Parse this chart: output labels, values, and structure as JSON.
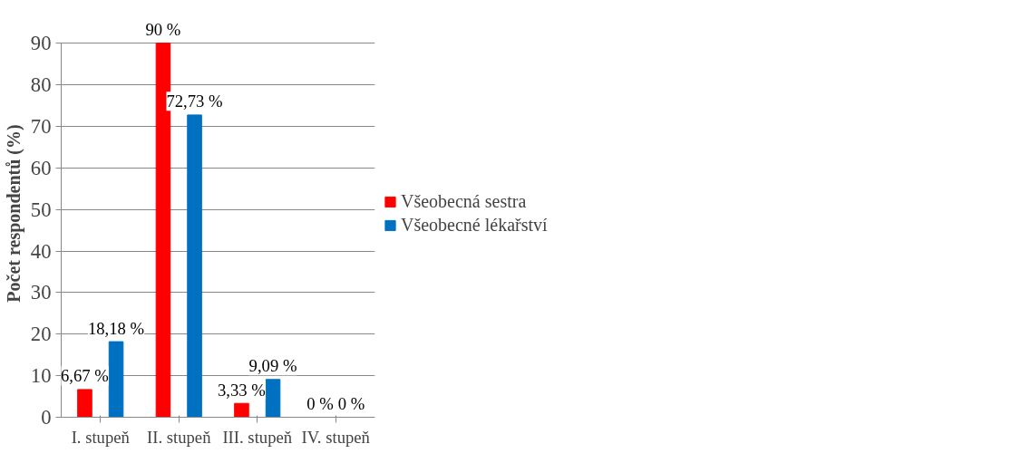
{
  "chart_data": {
    "type": "bar",
    "ylabel": "Počet respondentů (%)",
    "categories": [
      "I. stupeň",
      "II. stupeň",
      "III. stupeň",
      "IV. stupeň"
    ],
    "series": [
      {
        "name": "Všeobecná sestra",
        "color": "#ff0000",
        "values": [
          6.67,
          90,
          3.33,
          0
        ],
        "value_labels": [
          "6,67 %",
          "90 %",
          "3,33 %",
          "0 %"
        ]
      },
      {
        "name": "Všeobecné lékařství",
        "color": "#0070c0",
        "values": [
          18.18,
          72.73,
          9.09,
          0
        ],
        "value_labels": [
          "18,18 %",
          "72,73 %",
          "9,09 %",
          "0 %"
        ]
      }
    ],
    "ylim": [
      0,
      90
    ],
    "yticks": [
      0,
      10,
      20,
      30,
      40,
      50,
      60,
      70,
      80,
      90
    ],
    "grid": "y",
    "legend": "right"
  }
}
